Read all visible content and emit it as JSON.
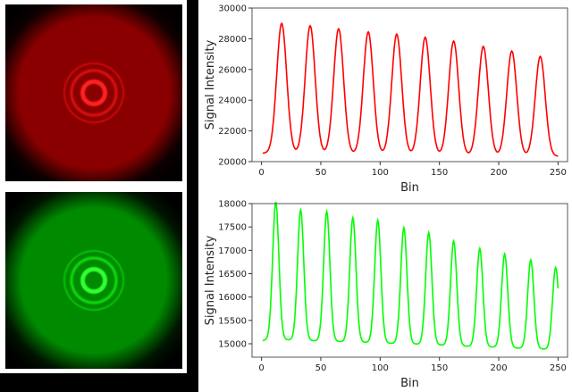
{
  "images": [
    {
      "name": "red-interference-rings",
      "color": "#ff0000"
    },
    {
      "name": "green-interference-rings",
      "color": "#00ff00"
    }
  ],
  "chart_data": [
    {
      "type": "line",
      "title": "",
      "xlabel": "Bin",
      "ylabel": "Signal Intensity",
      "color": "#ff0000",
      "xlim": [
        -8,
        258
      ],
      "ylim": [
        20000,
        30000
      ],
      "xticks": [
        0,
        50,
        100,
        150,
        200,
        250
      ],
      "yticks": [
        20000,
        22000,
        24000,
        26000,
        28000,
        30000
      ],
      "xtick_labels": [
        "0",
        "50",
        "100",
        "150",
        "200",
        "250"
      ],
      "ytick_labels": [
        "20000",
        "22000",
        "24000",
        "26000",
        "28000",
        "30000"
      ],
      "x_range": [
        1,
        250
      ],
      "peak_x": [
        17,
        41,
        65,
        90,
        114,
        138,
        162,
        187,
        211,
        235
      ],
      "peak_y": [
        29000,
        28850,
        28650,
        28450,
        28300,
        28100,
        27850,
        27500,
        27200,
        26850
      ],
      "baseline_start": 20550,
      "baseline_end": 20350,
      "peak_width": 4.2
    },
    {
      "type": "line",
      "title": "",
      "xlabel": "Bin",
      "ylabel": "Signal Intensity",
      "color": "#00ff00",
      "xlim": [
        -8,
        258
      ],
      "ylim": [
        14713,
        18000
      ],
      "xticks": [
        0,
        50,
        100,
        150,
        200,
        250
      ],
      "yticks": [
        15000,
        15500,
        16000,
        16500,
        17000,
        17500,
        18000
      ],
      "xtick_labels": [
        "0",
        "50",
        "100",
        "150",
        "200",
        "250"
      ],
      "ytick_labels": [
        "15000",
        "15500",
        "16000",
        "16500",
        "17000",
        "17500",
        "18000"
      ],
      "x_range": [
        1,
        250
      ],
      "peak_x": [
        12,
        33,
        55,
        77,
        98,
        120,
        141,
        162,
        184,
        205,
        227,
        248
      ],
      "peak_y": [
        17850,
        17680,
        17650,
        17520,
        17470,
        17320,
        17220,
        17050,
        16900,
        16790,
        16670,
        16520
      ],
      "baseline_start": 15030,
      "baseline_end": 14830,
      "peak_width": 2.6
    }
  ]
}
